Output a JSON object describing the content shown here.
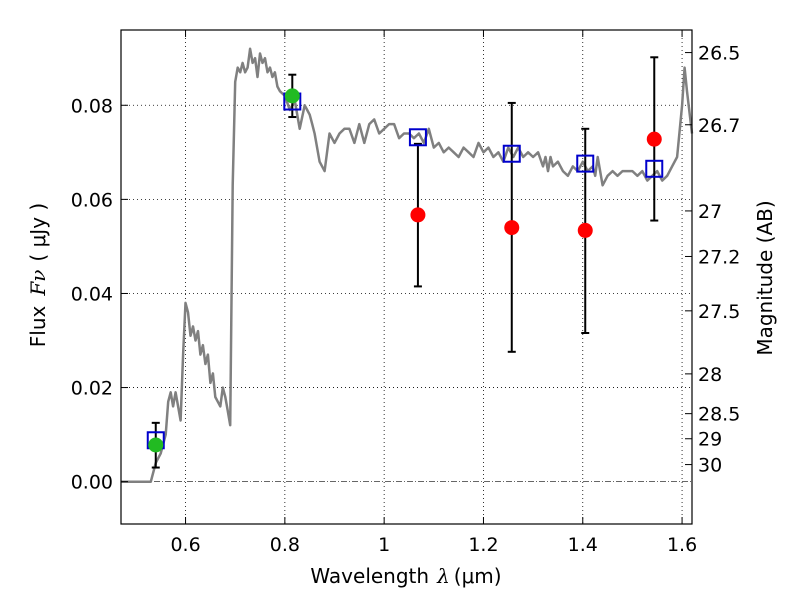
{
  "chart_data": {
    "type": "scatter",
    "xlabel": {
      "prefix": "Wavelength",
      "symbol": "λ",
      "unit": "(μm)"
    },
    "ylabel": {
      "prefix": "Flux",
      "symbol": "Fν",
      "unit": "( μJy )"
    },
    "y2label": "Magnitude (AB)",
    "xlim": [
      0.47,
      1.62
    ],
    "ylim": [
      -0.009,
      0.096
    ],
    "x_ticks": [
      0.6,
      0.8,
      1.0,
      1.2,
      1.4,
      1.6
    ],
    "x_tick_labels": [
      "0.6",
      "0.8",
      "1",
      "1.2",
      "1.4",
      "1.6"
    ],
    "y_ticks": [
      0.0,
      0.02,
      0.04,
      0.06,
      0.08
    ],
    "y_tick_labels": [
      "0.00",
      "0.02",
      "0.04",
      "0.06",
      "0.08"
    ],
    "mag_ticks": [
      26.5,
      26.7,
      27,
      27.2,
      27.5,
      28,
      28.5,
      29,
      30
    ],
    "mag_tick_labels": [
      "26.5",
      "26.7",
      "27",
      "27.2",
      "27.5",
      "28",
      "28.5",
      "29",
      "30"
    ],
    "grid": "dotted",
    "zero_line": true,
    "colors": {
      "model": "#808080",
      "model_points": "#0000cc",
      "observed_detected": "#22bb22",
      "observed_other": "#ff0000",
      "errorbar": "#000000"
    },
    "model_sed": {
      "x": [
        0.47,
        0.52,
        0.53,
        0.54,
        0.55,
        0.56,
        0.565,
        0.57,
        0.575,
        0.58,
        0.59,
        0.595,
        0.6,
        0.605,
        0.61,
        0.615,
        0.62,
        0.625,
        0.63,
        0.635,
        0.64,
        0.645,
        0.65,
        0.655,
        0.66,
        0.665,
        0.67,
        0.675,
        0.68,
        0.685,
        0.69,
        0.695,
        0.7,
        0.705,
        0.71,
        0.715,
        0.72,
        0.725,
        0.73,
        0.735,
        0.74,
        0.745,
        0.75,
        0.755,
        0.76,
        0.765,
        0.77,
        0.775,
        0.78,
        0.785,
        0.79,
        0.8,
        0.81,
        0.82,
        0.83,
        0.84,
        0.845,
        0.85,
        0.855,
        0.86,
        0.87,
        0.88,
        0.89,
        0.9,
        0.91,
        0.92,
        0.93,
        0.94,
        0.95,
        0.96,
        0.97,
        0.98,
        0.99,
        1.0,
        1.01,
        1.02,
        1.03,
        1.04,
        1.05,
        1.06,
        1.07,
        1.08,
        1.09,
        1.1,
        1.11,
        1.12,
        1.13,
        1.14,
        1.15,
        1.16,
        1.17,
        1.18,
        1.19,
        1.2,
        1.21,
        1.22,
        1.23,
        1.24,
        1.25,
        1.26,
        1.27,
        1.28,
        1.29,
        1.3,
        1.31,
        1.32,
        1.325,
        1.33,
        1.335,
        1.34,
        1.35,
        1.36,
        1.37,
        1.38,
        1.39,
        1.4,
        1.41,
        1.42,
        1.425,
        1.43,
        1.44,
        1.45,
        1.46,
        1.47,
        1.48,
        1.49,
        1.5,
        1.51,
        1.52,
        1.53,
        1.54,
        1.55,
        1.56,
        1.57,
        1.58,
        1.59,
        1.6,
        1.605,
        1.61,
        1.62
      ],
      "y": [
        0.0,
        0.0,
        0.0,
        0.004,
        0.006,
        0.01,
        0.017,
        0.019,
        0.016,
        0.019,
        0.013,
        0.027,
        0.038,
        0.036,
        0.031,
        0.033,
        0.03,
        0.032,
        0.027,
        0.029,
        0.025,
        0.027,
        0.021,
        0.023,
        0.018,
        0.017,
        0.016,
        0.02,
        0.018,
        0.015,
        0.012,
        0.063,
        0.085,
        0.088,
        0.087,
        0.089,
        0.087,
        0.088,
        0.092,
        0.089,
        0.09,
        0.086,
        0.091,
        0.089,
        0.09,
        0.087,
        0.088,
        0.086,
        0.087,
        0.084,
        0.083,
        0.082,
        0.079,
        0.081,
        0.075,
        0.08,
        0.079,
        0.078,
        0.076,
        0.074,
        0.068,
        0.066,
        0.074,
        0.072,
        0.074,
        0.075,
        0.075,
        0.072,
        0.076,
        0.072,
        0.076,
        0.077,
        0.074,
        0.075,
        0.076,
        0.076,
        0.073,
        0.074,
        0.074,
        0.073,
        0.074,
        0.072,
        0.075,
        0.071,
        0.072,
        0.07,
        0.071,
        0.07,
        0.069,
        0.071,
        0.07,
        0.069,
        0.072,
        0.07,
        0.071,
        0.069,
        0.07,
        0.068,
        0.071,
        0.069,
        0.071,
        0.069,
        0.07,
        0.069,
        0.07,
        0.067,
        0.069,
        0.066,
        0.069,
        0.067,
        0.068,
        0.066,
        0.065,
        0.067,
        0.066,
        0.068,
        0.066,
        0.067,
        0.065,
        0.069,
        0.063,
        0.065,
        0.066,
        0.065,
        0.066,
        0.066,
        0.066,
        0.065,
        0.066,
        0.064,
        0.065,
        0.066,
        0.064,
        0.065,
        0.067,
        0.069,
        0.08,
        0.088,
        0.083,
        0.074
      ]
    },
    "model_points": [
      {
        "x": 0.54,
        "y": 0.0088
      },
      {
        "x": 0.815,
        "y": 0.0808
      },
      {
        "x": 1.068,
        "y": 0.0732
      },
      {
        "x": 1.257,
        "y": 0.0697
      },
      {
        "x": 1.405,
        "y": 0.0676
      },
      {
        "x": 1.544,
        "y": 0.0665
      }
    ],
    "observations": [
      {
        "x": 0.54,
        "y": 0.0078,
        "err_low": 0.003,
        "err_high": 0.0125,
        "detected": true
      },
      {
        "x": 0.815,
        "y": 0.082,
        "err_low": 0.0775,
        "err_high": 0.0865,
        "detected": true
      },
      {
        "x": 1.068,
        "y": 0.0567,
        "err_low": 0.0415,
        "err_high": 0.0718,
        "detected": false
      },
      {
        "x": 1.257,
        "y": 0.054,
        "err_low": 0.0276,
        "err_high": 0.0805,
        "detected": false
      },
      {
        "x": 1.405,
        "y": 0.0534,
        "err_low": 0.0316,
        "err_high": 0.075,
        "detected": false
      },
      {
        "x": 1.544,
        "y": 0.0728,
        "err_low": 0.0555,
        "err_high": 0.0902,
        "detected": false
      }
    ]
  }
}
